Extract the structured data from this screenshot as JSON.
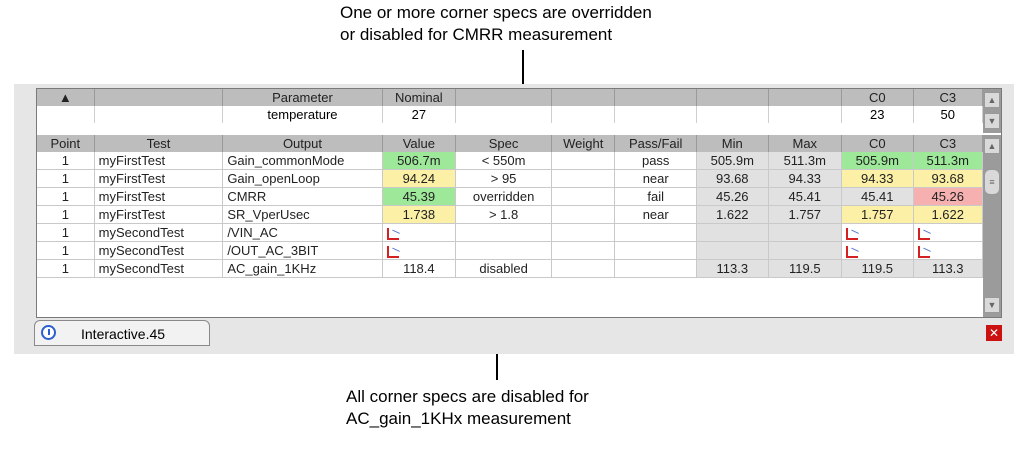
{
  "annotations": {
    "top_line1": "One or more corner specs are overridden",
    "top_line2": "or disabled for CMRR measurement",
    "bottom_line1": "All corner specs are disabled for",
    "bottom_line2": "AC_gain_1KHx measurement"
  },
  "parameters": {
    "headers": [
      "Parameter",
      "Nominal",
      "C0",
      "C3"
    ],
    "row": {
      "name": "temperature",
      "nominal": "27",
      "c0": "23",
      "c3": "50"
    }
  },
  "columns": [
    "Point",
    "Test",
    "Output",
    "Value",
    "Spec",
    "Weight",
    "Pass/Fail",
    "Min",
    "Max",
    "C0",
    "C3"
  ],
  "rows": [
    {
      "point": "1",
      "test": "myFirstTest",
      "output": "Gain_commonMode",
      "value": "506.7m",
      "spec": "< 550m",
      "weight": "",
      "passfail": "pass",
      "min": "505.9m",
      "max": "511.3m",
      "c0": "505.9m",
      "c3": "511.3m"
    },
    {
      "point": "1",
      "test": "myFirstTest",
      "output": "Gain_openLoop",
      "value": "94.24",
      "spec": "> 95",
      "weight": "",
      "passfail": "near",
      "min": "93.68",
      "max": "94.33",
      "c0": "94.33",
      "c3": "93.68"
    },
    {
      "point": "1",
      "test": "myFirstTest",
      "output": "CMRR",
      "value": "45.39",
      "spec": "overridden",
      "weight": "",
      "passfail": "fail",
      "min": "45.26",
      "max": "45.41",
      "c0": "45.41",
      "c3": "45.26"
    },
    {
      "point": "1",
      "test": "myFirstTest",
      "output": "SR_VperUsec",
      "value": "1.738",
      "spec": "> 1.8",
      "weight": "",
      "passfail": "near",
      "min": "1.622",
      "max": "1.757",
      "c0": "1.757",
      "c3": "1.622"
    },
    {
      "point": "1",
      "test": "mySecondTest",
      "output": "/VIN_AC",
      "value": "",
      "spec": "",
      "weight": "",
      "passfail": "",
      "min": "",
      "max": "",
      "c0": "",
      "c3": ""
    },
    {
      "point": "1",
      "test": "mySecondTest",
      "output": "/OUT_AC_3BIT",
      "value": "",
      "spec": "",
      "weight": "",
      "passfail": "",
      "min": "",
      "max": "",
      "c0": "",
      "c3": ""
    },
    {
      "point": "1",
      "test": "mySecondTest",
      "output": "AC_gain_1KHz",
      "value": "118.4",
      "spec": "disabled",
      "weight": "",
      "passfail": "",
      "min": "113.3",
      "max": "119.5",
      "c0": "119.5",
      "c3": "113.3"
    }
  ],
  "tab": {
    "label": "Interactive.45",
    "icon": "clock-icon"
  },
  "colors": {
    "pass": "#2e8b20",
    "near": "#e0a500",
    "fail": "#d01010",
    "green_cell": "#9ee89a",
    "yellow_cell": "#fbf0a6",
    "red_cell": "#f6b0b0"
  }
}
